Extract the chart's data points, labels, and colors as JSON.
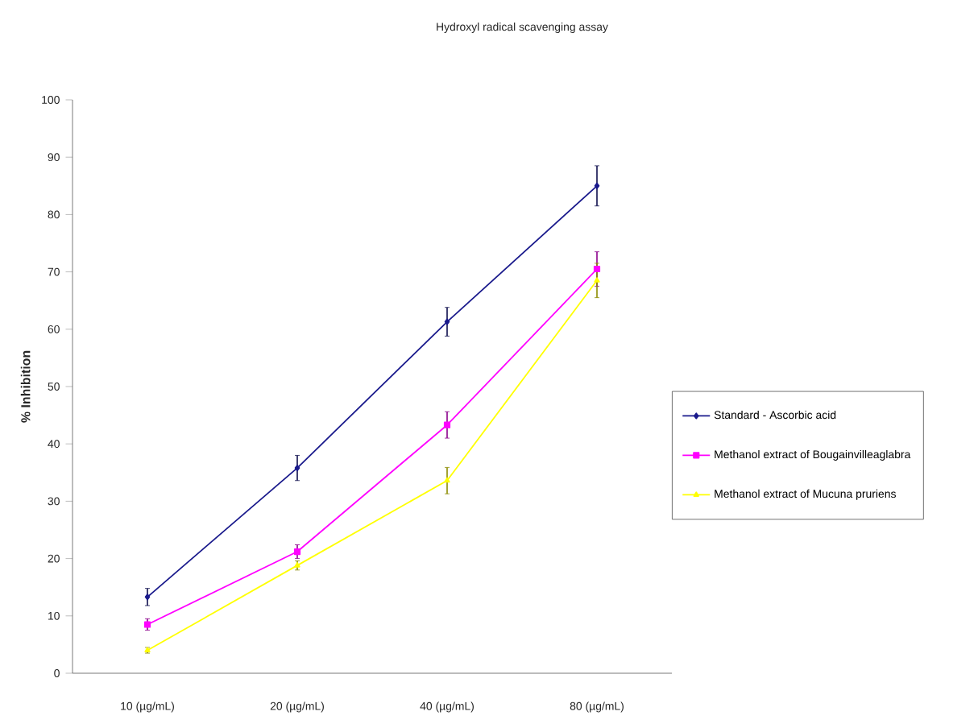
{
  "chart_data": {
    "type": "line",
    "title": "Hydroxyl radical scavenging assay",
    "ylabel": "% Inhibition",
    "categories": [
      "10 (µg/mL)",
      "20 (µg/mL)",
      "40 (µg/mL)",
      "80 (µg/mL)"
    ],
    "series": [
      {
        "name": "Standard - Ascorbic acid",
        "color": "#1a1a8c",
        "marker": "diamond",
        "values": [
          13.3,
          35.8,
          61.3,
          85
        ],
        "errors": [
          1.5,
          2.2,
          2.5,
          3.5
        ]
      },
      {
        "name": "Methanol extract of Bougainvilleaglabra",
        "color": "#ff00ff",
        "marker": "square",
        "values": [
          8.5,
          21.2,
          43.3,
          70.5
        ],
        "errors": [
          1,
          1.2,
          2.3,
          3
        ]
      },
      {
        "name": "Methanol extract of Mucuna pruriens",
        "color": "#ffff00",
        "marker": "triangle",
        "values": [
          4,
          18.8,
          33.6,
          68.5
        ],
        "errors": [
          0.5,
          0.8,
          2.3,
          3
        ]
      }
    ],
    "ylim": [
      0,
      100
    ],
    "yticks": [
      0,
      10,
      20,
      30,
      40,
      50,
      60,
      70,
      80,
      90,
      100
    ],
    "legend": "right",
    "grid": false,
    "line_style": "solid"
  }
}
